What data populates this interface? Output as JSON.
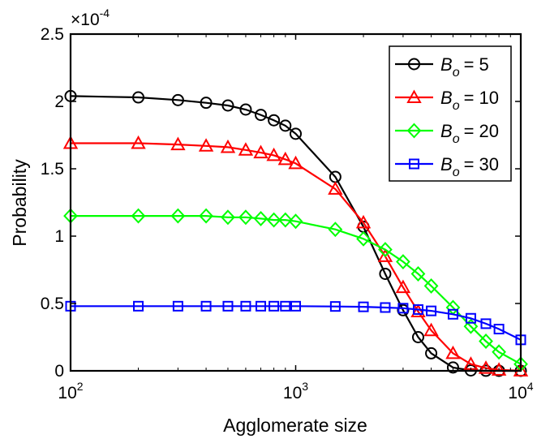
{
  "chart_data": {
    "type": "line",
    "xlabel": "Agglomerate size",
    "ylabel": "Probability",
    "xscale": "log",
    "xlim": [
      100,
      10000
    ],
    "ylim": [
      0,
      0.00025
    ],
    "y_multiplier_label": {
      "prefix": "×10",
      "exponent": "-4"
    },
    "x_ticks": [
      {
        "base": "10",
        "exp": "2"
      },
      {
        "base": "10",
        "exp": "3"
      },
      {
        "base": "10",
        "exp": "4"
      }
    ],
    "y_ticks": [
      "0",
      "0.5",
      "1",
      "1.5",
      "2",
      "2.5"
    ],
    "legend_placement": "top-right",
    "grid": false,
    "series": [
      {
        "name_prefix": "B",
        "name_sub": "o",
        "name_value": "= 5",
        "color": "#000000",
        "marker": "circle",
        "x": [
          100,
          200,
          300,
          400,
          500,
          600,
          700,
          800,
          900,
          1000,
          1500,
          2000,
          2500,
          3000,
          3500,
          4000,
          5000,
          6000,
          7000,
          8000,
          10000
        ],
        "y": [
          0.000204,
          0.000203,
          0.000201,
          0.000199,
          0.000197,
          0.000194,
          0.00019,
          0.000186,
          0.000182,
          0.000176,
          0.000144,
          0.000107,
          7.2e-05,
          4.5e-05,
          2.5e-05,
          1.3e-05,
          2.5e-06,
          3e-07,
          5e-08,
          1e-08,
          0
        ]
      },
      {
        "name_prefix": "B",
        "name_sub": "o",
        "name_value": "= 10",
        "color": "#ff0000",
        "marker": "triangle",
        "x": [
          100,
          200,
          300,
          400,
          500,
          600,
          700,
          800,
          900,
          1000,
          1500,
          2000,
          2500,
          3000,
          3500,
          4000,
          5000,
          6000,
          7000,
          8000,
          10000
        ],
        "y": [
          0.000169,
          0.000169,
          0.000168,
          0.000167,
          0.000166,
          0.000164,
          0.000162,
          0.00016,
          0.000157,
          0.000154,
          0.000135,
          0.00011,
          8.5e-05,
          6.2e-05,
          4.4e-05,
          3e-05,
          1.3e-05,
          5e-06,
          2e-06,
          7e-07,
          5e-08
        ]
      },
      {
        "name_prefix": "B",
        "name_sub": "o",
        "name_value": "= 20",
        "color": "#00ff00",
        "marker": "diamond",
        "x": [
          100,
          200,
          300,
          400,
          500,
          600,
          700,
          800,
          900,
          1000,
          1500,
          2000,
          2500,
          3000,
          3500,
          4000,
          5000,
          6000,
          7000,
          8000,
          10000
        ],
        "y": [
          0.000115,
          0.000115,
          0.000115,
          0.000115,
          0.000114,
          0.000114,
          0.000113,
          0.000112,
          0.000112,
          0.000111,
          0.000105,
          9.8e-05,
          9e-05,
          8.1e-05,
          7.2e-05,
          6.3e-05,
          4.7e-05,
          3.3e-05,
          2.2e-05,
          1.4e-05,
          5e-06
        ]
      },
      {
        "name_prefix": "B",
        "name_sub": "o",
        "name_value": "= 30",
        "color": "#0000ff",
        "marker": "square",
        "x": [
          100,
          200,
          300,
          400,
          500,
          600,
          700,
          800,
          900,
          1000,
          1500,
          2000,
          2500,
          3000,
          3500,
          4000,
          5000,
          6000,
          7000,
          8000,
          10000
        ],
        "y": [
          4.8e-05,
          4.8e-05,
          4.8e-05,
          4.8e-05,
          4.8e-05,
          4.8e-05,
          4.8e-05,
          4.8e-05,
          4.8e-05,
          4.8e-05,
          4.78e-05,
          4.75e-05,
          4.7e-05,
          4.65e-05,
          4.55e-05,
          4.45e-05,
          4.2e-05,
          3.9e-05,
          3.5e-05,
          3.1e-05,
          2.3e-05
        ]
      }
    ]
  }
}
